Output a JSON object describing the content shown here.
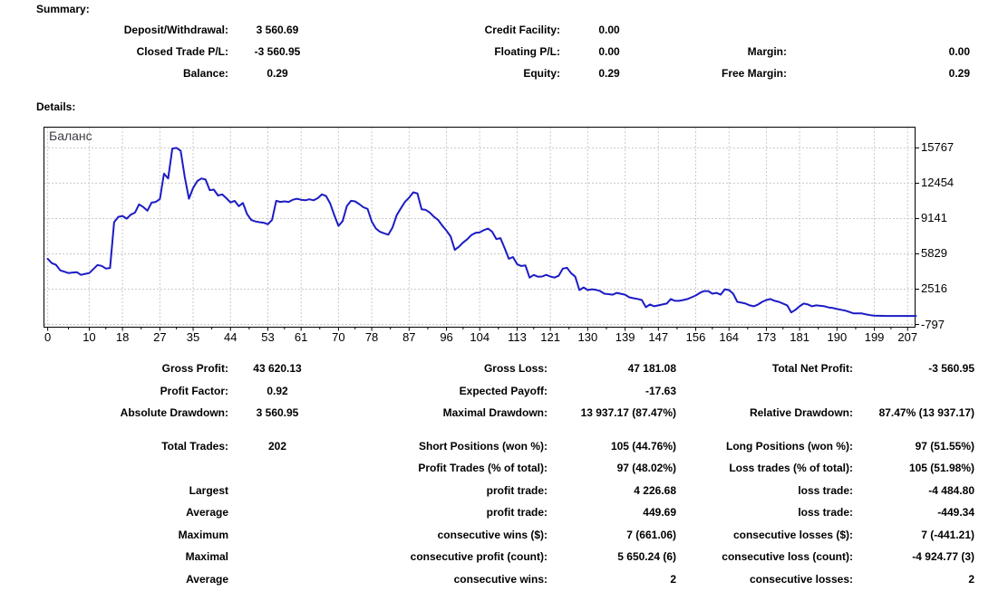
{
  "report": {
    "summary_heading": "Summary:",
    "details_heading": "Details:"
  },
  "summary_table": {
    "rows": [
      [
        "Deposit/Withdrawal:",
        "3 560.69",
        "Credit Facility:",
        "0.00",
        "",
        ""
      ],
      [
        "Closed Trade P/L:",
        "-3 560.95",
        "Floating P/L:",
        "0.00",
        "Margin:",
        "0.00"
      ],
      [
        "Balance:",
        "0.29",
        "Equity:",
        "0.29",
        "Free Margin:",
        "0.29"
      ]
    ]
  },
  "details_table": {
    "rows": [
      [
        "Gross Profit:",
        "43 620.13",
        "Gross Loss:",
        "47 181.08",
        "Total Net Profit:",
        "-3 560.95"
      ],
      [
        "Profit Factor:",
        "0.92",
        "Expected Payoff:",
        "-17.63",
        "",
        ""
      ],
      [
        "Absolute Drawdown:",
        "3 560.95",
        "Maximal Drawdown:",
        "13 937.17 (87.47%)",
        "Relative Drawdown:",
        "87.47% (13 937.17)"
      ],
      [
        "Total Trades:",
        "202",
        "Short Positions (won %):",
        "105 (44.76%)",
        "Long Positions (won %):",
        "97 (51.55%)"
      ],
      [
        "",
        "",
        "Profit Trades (% of total):",
        "97 (48.02%)",
        "Loss trades (% of total):",
        "105 (51.98%)"
      ],
      [
        "Largest",
        "",
        "profit trade:",
        "4 226.68",
        "loss trade:",
        "-4 484.80"
      ],
      [
        "Average",
        "",
        "profit trade:",
        "449.69",
        "loss trade:",
        "-449.34"
      ],
      [
        "Maximum",
        "",
        "consecutive wins ($):",
        "7 (661.06)",
        "consecutive losses ($):",
        "7 (-441.21)"
      ],
      [
        "Maximal",
        "",
        "consecutive profit (count):",
        "5 650.24 (6)",
        "consecutive loss (count):",
        "-4 924.77 (3)"
      ],
      [
        "Average",
        "",
        "consecutive wins:",
        "2",
        "consecutive losses:",
        "2"
      ]
    ]
  },
  "chart_data": {
    "type": "line",
    "title": "Баланс",
    "xlabel": "",
    "ylabel": "",
    "x_ticks": [
      0,
      10,
      18,
      27,
      35,
      44,
      53,
      61,
      70,
      78,
      87,
      96,
      104,
      113,
      121,
      130,
      139,
      147,
      156,
      164,
      173,
      181,
      190,
      199,
      207
    ],
    "y_ticks": [
      15767,
      12454,
      9141,
      5829,
      2516,
      -797
    ],
    "x_range": [
      -0.9,
      208.8
    ],
    "y_range": [
      -1050,
      17712
    ],
    "grid": "dashed",
    "line_color": "#1c1cc4",
    "grid_color": "#c9c9c9",
    "border_color": "#000000",
    "series": [
      {
        "name": "Баланс",
        "points": [
          [
            0,
            5370
          ],
          [
            1,
            4950
          ],
          [
            2,
            4800
          ],
          [
            3,
            4280
          ],
          [
            4,
            4150
          ],
          [
            5,
            4030
          ],
          [
            6,
            4080
          ],
          [
            7,
            4110
          ],
          [
            8,
            3860
          ],
          [
            9,
            3950
          ],
          [
            10,
            4030
          ],
          [
            11,
            4400
          ],
          [
            12,
            4780
          ],
          [
            13,
            4700
          ],
          [
            14,
            4450
          ],
          [
            15,
            4500
          ],
          [
            16,
            8800
          ],
          [
            17,
            9300
          ],
          [
            18,
            9380
          ],
          [
            19,
            9130
          ],
          [
            20,
            9500
          ],
          [
            21,
            9700
          ],
          [
            22,
            10470
          ],
          [
            23,
            10220
          ],
          [
            24,
            9880
          ],
          [
            25,
            10630
          ],
          [
            26,
            10700
          ],
          [
            27,
            10970
          ],
          [
            28,
            13350
          ],
          [
            29,
            12900
          ],
          [
            30,
            15700
          ],
          [
            31,
            15767
          ],
          [
            32,
            15500
          ],
          [
            33,
            13000
          ],
          [
            34,
            11000
          ],
          [
            35,
            12000
          ],
          [
            36,
            12650
          ],
          [
            37,
            12900
          ],
          [
            38,
            12800
          ],
          [
            39,
            11800
          ],
          [
            40,
            11850
          ],
          [
            41,
            11300
          ],
          [
            42,
            11400
          ],
          [
            43,
            11050
          ],
          [
            44,
            10650
          ],
          [
            45,
            10800
          ],
          [
            46,
            10300
          ],
          [
            47,
            10600
          ],
          [
            48,
            9550
          ],
          [
            49,
            9000
          ],
          [
            50,
            8870
          ],
          [
            51,
            8800
          ],
          [
            52,
            8750
          ],
          [
            53,
            8600
          ],
          [
            54,
            9000
          ],
          [
            55,
            10800
          ],
          [
            56,
            10700
          ],
          [
            57,
            10750
          ],
          [
            58,
            10700
          ],
          [
            59,
            10900
          ],
          [
            60,
            11000
          ],
          [
            61,
            10900
          ],
          [
            62,
            10850
          ],
          [
            63,
            10950
          ],
          [
            64,
            10850
          ],
          [
            65,
            11050
          ],
          [
            66,
            11400
          ],
          [
            67,
            11250
          ],
          [
            68,
            10550
          ],
          [
            69,
            9450
          ],
          [
            70,
            8450
          ],
          [
            71,
            8900
          ],
          [
            72,
            10300
          ],
          [
            73,
            10800
          ],
          [
            74,
            10750
          ],
          [
            75,
            10500
          ],
          [
            76,
            10200
          ],
          [
            77,
            10050
          ],
          [
            78,
            8870
          ],
          [
            79,
            8200
          ],
          [
            80,
            7900
          ],
          [
            81,
            7750
          ],
          [
            82,
            7630
          ],
          [
            83,
            8300
          ],
          [
            84,
            9450
          ],
          [
            85,
            10100
          ],
          [
            86,
            10700
          ],
          [
            87,
            11100
          ],
          [
            88,
            11600
          ],
          [
            89,
            11500
          ],
          [
            90,
            10000
          ],
          [
            91,
            9950
          ],
          [
            92,
            9700
          ],
          [
            93,
            9300
          ],
          [
            94,
            9000
          ],
          [
            95,
            8470
          ],
          [
            96,
            8000
          ],
          [
            97,
            7465
          ],
          [
            98,
            6200
          ],
          [
            99,
            6500
          ],
          [
            100,
            6900
          ],
          [
            101,
            7200
          ],
          [
            102,
            7600
          ],
          [
            103,
            7800
          ],
          [
            104,
            7850
          ],
          [
            105,
            8050
          ],
          [
            106,
            8200
          ],
          [
            107,
            7900
          ],
          [
            108,
            7210
          ],
          [
            109,
            7300
          ],
          [
            110,
            6370
          ],
          [
            111,
            5370
          ],
          [
            112,
            5530
          ],
          [
            113,
            4860
          ],
          [
            114,
            4690
          ],
          [
            115,
            4750
          ],
          [
            116,
            3600
          ],
          [
            117,
            3850
          ],
          [
            118,
            3690
          ],
          [
            119,
            3700
          ],
          [
            120,
            3860
          ],
          [
            121,
            3700
          ],
          [
            122,
            3600
          ],
          [
            123,
            3770
          ],
          [
            124,
            4440
          ],
          [
            125,
            4520
          ],
          [
            126,
            4020
          ],
          [
            127,
            3690
          ],
          [
            128,
            2430
          ],
          [
            129,
            2680
          ],
          [
            130,
            2430
          ],
          [
            131,
            2510
          ],
          [
            132,
            2450
          ],
          [
            133,
            2340
          ],
          [
            134,
            2090
          ],
          [
            135,
            2050
          ],
          [
            136,
            2000
          ],
          [
            137,
            2170
          ],
          [
            138,
            2080
          ],
          [
            139,
            2000
          ],
          [
            140,
            1750
          ],
          [
            141,
            1670
          ],
          [
            142,
            1600
          ],
          [
            143,
            1500
          ],
          [
            144,
            830
          ],
          [
            145,
            1080
          ],
          [
            146,
            915
          ],
          [
            147,
            1000
          ],
          [
            148,
            1080
          ],
          [
            149,
            1170
          ],
          [
            150,
            1590
          ],
          [
            151,
            1420
          ],
          [
            152,
            1420
          ],
          [
            153,
            1500
          ],
          [
            154,
            1590
          ],
          [
            155,
            1750
          ],
          [
            156,
            1920
          ],
          [
            157,
            2170
          ],
          [
            158,
            2340
          ],
          [
            159,
            2340
          ],
          [
            160,
            2090
          ],
          [
            161,
            2170
          ],
          [
            162,
            2000
          ],
          [
            163,
            2510
          ],
          [
            164,
            2430
          ],
          [
            165,
            2090
          ],
          [
            166,
            1330
          ],
          [
            167,
            1250
          ],
          [
            168,
            1170
          ],
          [
            169,
            1000
          ],
          [
            170,
            915
          ],
          [
            171,
            1080
          ],
          [
            172,
            1330
          ],
          [
            173,
            1500
          ],
          [
            174,
            1590
          ],
          [
            175,
            1420
          ],
          [
            176,
            1330
          ],
          [
            177,
            1170
          ],
          [
            178,
            1000
          ],
          [
            179,
            330
          ],
          [
            180,
            580
          ],
          [
            181,
            915
          ],
          [
            182,
            1170
          ],
          [
            183,
            1080
          ],
          [
            184,
            915
          ],
          [
            185,
            1000
          ],
          [
            186,
            950
          ],
          [
            187,
            915
          ],
          [
            188,
            800
          ],
          [
            189,
            750
          ],
          [
            190,
            660
          ],
          [
            191,
            580
          ],
          [
            192,
            500
          ],
          [
            193,
            380
          ],
          [
            194,
            240
          ],
          [
            195,
            240
          ],
          [
            196,
            240
          ],
          [
            197,
            150
          ],
          [
            198,
            80
          ],
          [
            199,
            30
          ],
          [
            200,
            20
          ],
          [
            201,
            10
          ],
          [
            202,
            5
          ],
          [
            203,
            3
          ],
          [
            204,
            2
          ],
          [
            205,
            1
          ],
          [
            206,
            1
          ],
          [
            207,
            0
          ],
          [
            208,
            0
          ],
          [
            209,
            0
          ]
        ]
      }
    ]
  }
}
